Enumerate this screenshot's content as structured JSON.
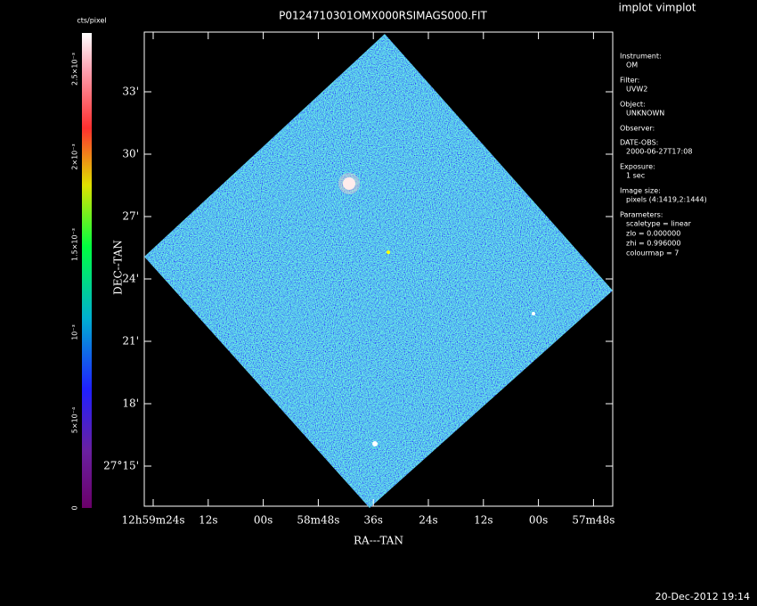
{
  "title": "P0124710301OMX000RSIMAGS000.FIT",
  "program": "implot vimplot",
  "colorbar": {
    "label": "cts/pixel",
    "ticks": [
      "0",
      "5×10⁻⁴",
      "10⁻³",
      "1.5×10⁻³",
      "2×10⁻³",
      "2.5×10⁻³"
    ]
  },
  "y_axis": {
    "label": "DEC--TAN",
    "ticks": [
      "27°15'",
      "18'",
      "21'",
      "24'",
      "27'",
      "30'",
      "33'"
    ]
  },
  "x_axis": {
    "label": "RA---TAN",
    "ticks": [
      "12h59m24s",
      "12s",
      "00s",
      "58m48s",
      "36s",
      "24s",
      "12s",
      "00s",
      "57m48s"
    ]
  },
  "info": [
    {
      "key": "Instrument:",
      "lines": [
        "OM"
      ]
    },
    {
      "key": "Filter:",
      "lines": [
        "UVW2"
      ]
    },
    {
      "key": "Object:",
      "lines": [
        "UNKNOWN"
      ]
    },
    {
      "key": "Observer:",
      "lines": []
    },
    {
      "key": "DATE-OBS:",
      "lines": [
        "2000-06-27T17:08"
      ]
    },
    {
      "key": "Exposure:",
      "lines": [
        "1 sec"
      ]
    },
    {
      "key": "Image size:",
      "lines": [
        "pixels (4:1419,2:1444)"
      ]
    },
    {
      "key": "Parameters:",
      "lines": [
        "scaletype = linear",
        "zlo = 0.000000",
        "zhi = 0.996000",
        "colourmap =   7"
      ]
    }
  ],
  "timestamp": "20-Dec-2012 19:14"
}
